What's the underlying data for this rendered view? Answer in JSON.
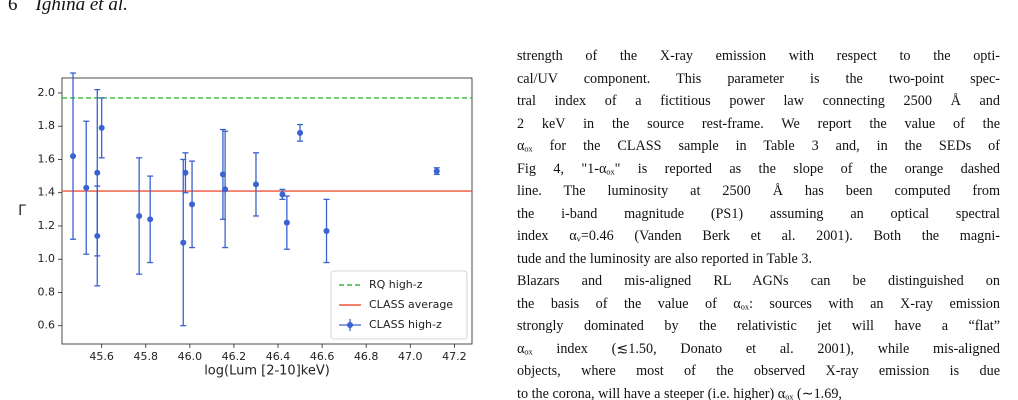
{
  "header": {
    "page_number": "6",
    "authors": "Ighina et al."
  },
  "chart_data": {
    "type": "errorbar",
    "xlabel": "log(Lum [2-10]keV)",
    "ylabel": "Γ",
    "xlim": [
      45.42,
      47.28
    ],
    "ylim": [
      0.49,
      2.09
    ],
    "xticks": [
      45.6,
      45.8,
      {
        "value": 46.0,
        "label": "46.0"
      },
      46.2,
      46.4,
      46.6,
      46.8,
      {
        "value": 47.0,
        "label": "47.0"
      },
      47.2
    ],
    "yticks": [
      0.6,
      0.8,
      {
        "value": 1.0,
        "label": "1.0"
      },
      1.2,
      1.4,
      1.6,
      1.8,
      {
        "value": 2.0,
        "label": "2.0"
      }
    ],
    "legend_position": "lower right",
    "hlines": [
      {
        "name": "RQ high-z",
        "value": 1.97,
        "color": "#3cb83c",
        "style": "dashed"
      },
      {
        "name": "CLASS average",
        "value": 1.41,
        "color": "#f0553a",
        "style": "solid"
      }
    ],
    "series": [
      {
        "name": "CLASS high-z",
        "color": "#3a62d0",
        "x": [
          45.47,
          45.53,
          45.58,
          45.58,
          45.6,
          45.77,
          45.82,
          45.97,
          45.98,
          46.01,
          46.15,
          46.16,
          46.3,
          46.42,
          46.44,
          46.5,
          46.62,
          47.12
        ],
        "values": [
          1.62,
          1.43,
          1.52,
          1.14,
          1.79,
          1.26,
          1.24,
          1.1,
          1.52,
          1.33,
          1.51,
          1.42,
          1.45,
          1.39,
          1.22,
          1.76,
          1.17,
          1.53
        ],
        "errors": [
          0.5,
          0.4,
          0.5,
          0.3,
          0.18,
          0.35,
          0.26,
          0.5,
          0.12,
          0.26,
          0.27,
          0.35,
          0.19,
          0.03,
          0.16,
          0.05,
          0.19,
          0.02
        ]
      }
    ]
  },
  "text": {
    "paragraphs": [
      [
        "strength of the X-ray emission with respect to the opti-",
        "cal/UV component. This parameter is the two-point spec-",
        "tral index of a fictitious power law connecting 2500 Å  and",
        "2 keV in the source rest-frame. We report the value of the",
        "αₒₓ  for the CLASS sample in Table 3 and, in the SEDs of",
        "Fig 4, \"1-αₒₓ\"  is reported as the slope of the orange dashed",
        "line. The luminosity at 2500 Å  has been computed from",
        "the i-band magnitude (PS1) assuming an optical spectral",
        "index αᵥ=0.46 (Vanden Berk et al. 2001). Both the magni-",
        "tude and the luminosity are also reported in Table 3."
      ],
      [
        "Blazars and mis-aligned RL AGNs can be distinguished on",
        "the basis of the value of αₒₓ: sources with an X-ray emission",
        "strongly dominated by the relativistic jet will have a “flat”",
        "αₒₓ  index (≲1.50, Donato et al. 2001), while mis-aligned",
        "objects, where most of the observed X-ray emission is due",
        "to the corona, will have a steeper (i.e. higher) αₒₓ  (∼1.69,"
      ]
    ]
  }
}
